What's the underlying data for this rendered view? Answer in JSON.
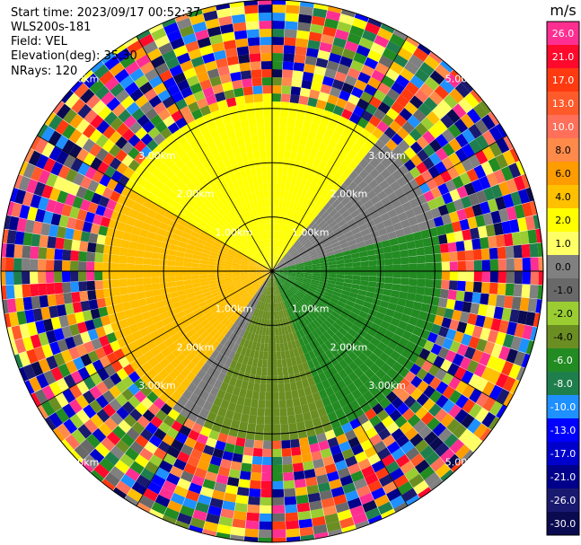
{
  "chart_data": {
    "type": "ppi-polar-scan",
    "start_time": "Start time: 2023/09/17 00:52:37",
    "instrument": "WLS200s-181",
    "field": "Field: VEL",
    "elevation": "Elevation(deg): 35.30",
    "nrays": "NRays: 120",
    "nrays_value": 120,
    "range_unit": "km",
    "range_max_km": 5.0,
    "range_rings_km": [
      1.0,
      2.0,
      3.0,
      5.0
    ],
    "ring_labels": [
      "1.00km",
      "2.00km",
      "3.00km",
      "5.00km"
    ],
    "spoke_angles_deg": [
      0,
      30,
      60,
      90,
      120,
      150,
      180,
      210,
      240,
      270,
      300,
      330
    ],
    "clean_range_km": 3.2,
    "regions": [
      {
        "name": "approaching-west",
        "az_from_deg": 215,
        "az_to_deg": 300,
        "value_mps": 4.0
      },
      {
        "name": "approaching-north",
        "az_from_deg": 300,
        "az_to_deg": 40,
        "value_mps": 2.0
      },
      {
        "name": "transition-ne",
        "az_from_deg": 40,
        "az_to_deg": 75,
        "value_mps": 0.0
      },
      {
        "name": "receding-east",
        "az_from_deg": 75,
        "az_to_deg": 160,
        "value_mps": -6.0
      },
      {
        "name": "receding-south",
        "az_from_deg": 160,
        "az_to_deg": 205,
        "value_mps": -4.0
      },
      {
        "name": "transition-sw",
        "az_from_deg": 205,
        "az_to_deg": 215,
        "value_mps": 0.0
      }
    ],
    "colorbar": {
      "title": "m/s",
      "ticks": [
        "26.0",
        "21.0",
        "17.0",
        "13.0",
        "10.0",
        "8.0",
        "6.0",
        "4.0",
        "2.0",
        "1.0",
        "0.0",
        "-1.0",
        "-2.0",
        "-4.0",
        "-6.0",
        "-8.0",
        "-10.0",
        "-13.0",
        "-17.0",
        "-21.0",
        "-26.0",
        "-30.0"
      ],
      "colors": [
        "#ff2f92",
        "#ff0a2c",
        "#ff3a10",
        "#ff5a2a",
        "#ff6f5a",
        "#ff8a4a",
        "#ff9c00",
        "#ffc000",
        "#ffff00",
        "#ffff66",
        "#808080",
        "#696969",
        "#9acd32",
        "#6b8e23",
        "#228b22",
        "#1f7f4c",
        "#1e90ff",
        "#0000ff",
        "#0000cd",
        "#00008b",
        "#191970",
        "#0a0a50"
      ]
    }
  }
}
